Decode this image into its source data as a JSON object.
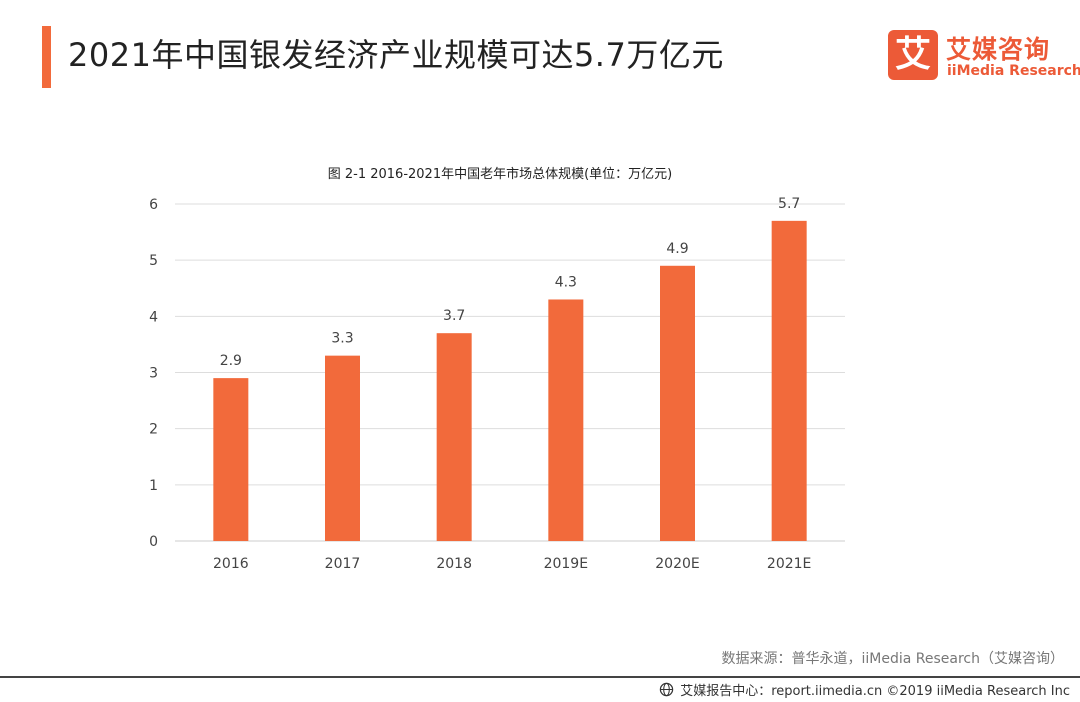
{
  "header": {
    "title": "2021年中国银发经济产业规模可达5.7万亿元"
  },
  "logo": {
    "mark_char": "艾",
    "cn": "艾媒咨询",
    "en": "iiMedia Research"
  },
  "colors": {
    "accent": "#f26a3b",
    "bar": "#f26a3b",
    "grid": "#dddddd"
  },
  "chart_data": {
    "type": "bar",
    "title": "图 2-1 2016-2021年中国老年市场总体规模(单位：万亿元)",
    "categories": [
      "2016",
      "2017",
      "2018",
      "2019E",
      "2020E",
      "2021E"
    ],
    "values": [
      2.9,
      3.3,
      3.7,
      4.3,
      4.9,
      5.7
    ],
    "value_labels": [
      "2.9",
      "3.3",
      "3.7",
      "4.3",
      "4.9",
      "5.7"
    ],
    "ylim": [
      0,
      6
    ],
    "yticks": [
      "0",
      "1",
      "2",
      "3",
      "4",
      "5",
      "6"
    ],
    "xlabel": "",
    "ylabel": "",
    "grid": true,
    "legend": "none"
  },
  "source": "数据来源：普华永道，iiMedia Research（艾媒咨询）",
  "footer": {
    "text": "艾媒报告中心：report.iimedia.cn  ©2019  iiMedia Research  Inc"
  }
}
